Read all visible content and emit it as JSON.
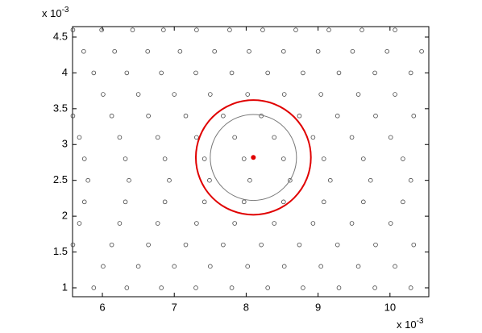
{
  "chart_data": {
    "type": "scatter",
    "x_multiplier": {
      "base": "x 10",
      "exponent": "-3"
    },
    "y_multiplier": {
      "base": "x 10",
      "exponent": "-3"
    },
    "xlim": [
      5.585,
      10.54
    ],
    "ylim": [
      0.876,
      4.646
    ],
    "xticks": [
      6,
      7,
      8,
      9,
      10
    ],
    "yticks": [
      1,
      1.5,
      2,
      2.5,
      3,
      3.5,
      4,
      4.5
    ],
    "grid": false,
    "series": [
      {
        "color": "#444444",
        "x": [
          5.59,
          5.68,
          5.75,
          5.8,
          5.75,
          5.68,
          5.59,
          5.59,
          5.74,
          5.88,
          6.01,
          6.13,
          6.24,
          6.32,
          6.37,
          6.32,
          6.24,
          6.13,
          6.01,
          5.88,
          5.99,
          6.17,
          6.34,
          6.5,
          6.64,
          6.77,
          6.87,
          6.93,
          6.87,
          6.77,
          6.64,
          6.5,
          6.34,
          6.42,
          6.63,
          6.82,
          7.0,
          7.16,
          7.31,
          7.42,
          7.49,
          7.42,
          7.31,
          7.16,
          7.0,
          6.82,
          6.85,
          7.08,
          7.3,
          7.5,
          7.68,
          7.84,
          7.97,
          8.05,
          7.97,
          7.84,
          7.68,
          7.5,
          7.3,
          7.31,
          7.56,
          7.8,
          8.02,
          8.21,
          8.39,
          8.52,
          8.61,
          8.52,
          8.39,
          8.21,
          8.02,
          7.8,
          7.77,
          8.04,
          8.3,
          8.53,
          8.74,
          8.93,
          9.08,
          9.17,
          9.08,
          8.93,
          8.74,
          8.53,
          8.3,
          8.23,
          8.52,
          8.79,
          9.04,
          9.27,
          9.47,
          9.63,
          9.73,
          9.63,
          9.47,
          9.27,
          9.04,
          8.79,
          8.69,
          9.0,
          9.29,
          9.56,
          9.8,
          10.01,
          10.18,
          10.29,
          10.18,
          10.01,
          9.8,
          9.56,
          9.29,
          9.15,
          9.48,
          9.79,
          10.07,
          10.33,
          10.33,
          10.07,
          9.79,
          9.61,
          9.96,
          10.29,
          10.29,
          10.07,
          10.44
        ],
        "y": [
          3.4,
          3.1,
          2.8,
          2.5,
          2.2,
          1.9,
          1.6,
          4.6,
          4.3,
          4.0,
          3.7,
          3.4,
          3.1,
          2.8,
          2.5,
          2.2,
          1.9,
          1.6,
          1.3,
          1.0,
          4.6,
          4.3,
          4.0,
          3.7,
          3.4,
          3.1,
          2.8,
          2.5,
          2.2,
          1.9,
          1.6,
          1.3,
          1.0,
          4.6,
          4.3,
          4.0,
          3.7,
          3.4,
          3.1,
          2.8,
          2.5,
          2.2,
          1.9,
          1.6,
          1.3,
          1.0,
          4.6,
          4.3,
          4.0,
          3.7,
          3.4,
          3.1,
          2.8,
          2.5,
          2.2,
          1.9,
          1.6,
          1.3,
          1.0,
          4.6,
          4.3,
          4.0,
          3.7,
          3.4,
          3.1,
          2.8,
          2.5,
          2.2,
          1.9,
          1.6,
          1.3,
          1.0,
          4.6,
          4.3,
          4.0,
          3.7,
          3.4,
          3.1,
          2.8,
          2.5,
          2.2,
          1.9,
          1.6,
          1.3,
          1.0,
          4.6,
          4.3,
          4.0,
          3.7,
          3.4,
          3.1,
          2.8,
          2.5,
          2.2,
          1.9,
          1.6,
          1.3,
          1.0,
          4.6,
          4.3,
          4.0,
          3.7,
          3.4,
          3.1,
          2.8,
          2.5,
          2.2,
          1.9,
          1.6,
          1.3,
          1.0,
          4.6,
          4.3,
          4.0,
          3.7,
          3.4,
          1.6,
          1.3,
          1.0,
          4.6,
          4.3,
          4.0,
          1.0,
          4.6,
          4.3
        ]
      }
    ],
    "circles": [
      {
        "cx": 8.1,
        "cy": 2.82,
        "r": 0.8,
        "color": "#e00000"
      },
      {
        "cx": 8.1,
        "cy": 2.82,
        "r": 0.6,
        "color": "#777777"
      }
    ],
    "markers": [
      {
        "x": 8.1,
        "y": 2.82,
        "color": "#e00000"
      }
    ]
  }
}
